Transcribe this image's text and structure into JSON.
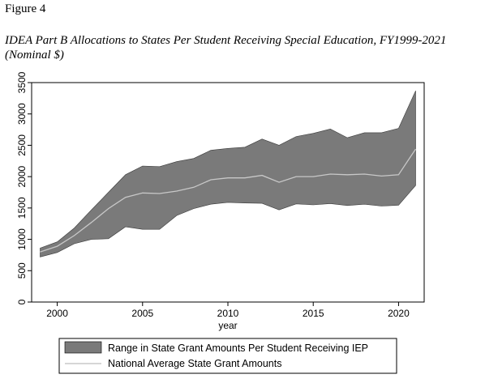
{
  "figure_label": "Figure 4",
  "figure_title": "IDEA Part B Allocations to States Per Student Receiving Special Education, FY1999-2021 (Nominal $)",
  "chart_data": {
    "type": "area",
    "x": [
      1999,
      2000,
      2001,
      2002,
      2003,
      2004,
      2005,
      2006,
      2007,
      2008,
      2009,
      2010,
      2011,
      2012,
      2013,
      2014,
      2015,
      2016,
      2017,
      2018,
      2019,
      2020,
      2021
    ],
    "series": [
      {
        "name": "Range in State Grant Amounts Per Student Receiving IEP",
        "kind": "range",
        "low": [
          720,
          790,
          930,
          1000,
          1010,
          1200,
          1160,
          1160,
          1380,
          1490,
          1560,
          1590,
          1580,
          1575,
          1470,
          1565,
          1550,
          1570,
          1540,
          1560,
          1530,
          1545,
          1860
        ],
        "high": [
          860,
          960,
          1180,
          1470,
          1750,
          2030,
          2170,
          2160,
          2240,
          2290,
          2420,
          2450,
          2470,
          2600,
          2500,
          2640,
          2690,
          2760,
          2620,
          2700,
          2700,
          2770,
          3370
        ],
        "color": "#7a7a7a"
      },
      {
        "name": "National Average State Grant Amounts",
        "kind": "line",
        "values": [
          800,
          890,
          1060,
          1270,
          1490,
          1670,
          1740,
          1730,
          1770,
          1830,
          1950,
          1980,
          1980,
          2020,
          1910,
          2000,
          2000,
          2040,
          2030,
          2040,
          2010,
          2030,
          2440
        ],
        "color": "#c8c8c8"
      }
    ],
    "xlabel": "year",
    "ylabel": "",
    "xlim": [
      1998.5,
      2021.5
    ],
    "ylim": [
      0,
      3500
    ],
    "xticks": [
      2000,
      2005,
      2010,
      2015,
      2020
    ],
    "yticks": [
      0,
      500,
      1000,
      1500,
      2000,
      2500,
      3000,
      3500
    ],
    "grid": false,
    "legend_position": "bottom"
  }
}
